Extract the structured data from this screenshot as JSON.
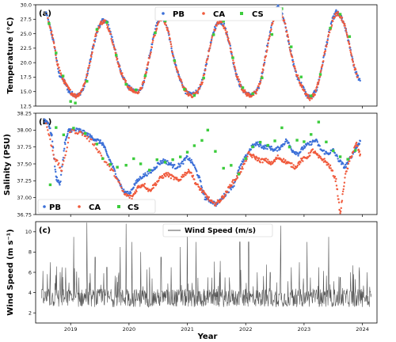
{
  "chart_data": [
    {
      "type": "scatter",
      "tag": "(a)",
      "ylabel": "Temperature (°C)",
      "ylim": [
        12.5,
        30.0
      ],
      "yticks": [
        12.5,
        15.0,
        17.5,
        20.0,
        22.5,
        25.0,
        27.5,
        30.0
      ],
      "ytick_labels": [
        "12.5",
        "15.0",
        "17.5",
        "20.0",
        "22.5",
        "25.0",
        "27.5",
        "30.0"
      ],
      "legend_position": "top-center",
      "series": [
        {
          "name": "PB",
          "color": "#3b6fd8",
          "values_x": [
            2018.58,
            2018.65,
            2018.72,
            2018.8,
            2018.88,
            2018.97,
            2019.05,
            2019.13,
            2019.22,
            2019.3,
            2019.38,
            2019.47,
            2019.55,
            2019.63,
            2019.72,
            2019.8,
            2019.88,
            2019.97,
            2020.05,
            2020.13,
            2020.22,
            2020.3,
            2020.38,
            2020.47,
            2020.55,
            2020.63,
            2020.72,
            2020.8,
            2020.88,
            2020.97,
            2021.05,
            2021.13,
            2021.22,
            2021.3,
            2021.38,
            2021.47,
            2021.55,
            2021.63,
            2021.72,
            2021.8,
            2021.88,
            2021.97,
            2022.05,
            2022.13,
            2022.22,
            2022.3,
            2022.38,
            2022.47,
            2022.55,
            2022.63,
            2022.72,
            2022.8,
            2022.88,
            2022.97,
            2023.05,
            2023.13,
            2023.22,
            2023.3,
            2023.38,
            2023.47,
            2023.55,
            2023.63,
            2023.72,
            2023.8,
            2023.88,
            2023.97
          ],
          "values_y": [
            28.6,
            26.0,
            23.0,
            18.0,
            17.0,
            15.0,
            14.5,
            14.3,
            15.5,
            18.5,
            22.5,
            26.0,
            27.3,
            27.0,
            24.0,
            20.5,
            18.0,
            16.0,
            15.3,
            15.0,
            15.5,
            18.5,
            22.5,
            26.5,
            28.0,
            27.0,
            23.0,
            19.5,
            17.0,
            15.0,
            14.5,
            14.8,
            15.5,
            18.5,
            22.5,
            26.0,
            27.2,
            26.5,
            23.5,
            19.5,
            16.5,
            15.0,
            14.5,
            14.5,
            15.5,
            19.0,
            23.5,
            27.5,
            29.7,
            28.5,
            24.5,
            20.5,
            17.5,
            16.0,
            14.2,
            14.0,
            15.5,
            19.0,
            23.0,
            27.0,
            28.8,
            28.0,
            25.5,
            22.0,
            18.5,
            16.5
          ]
        },
        {
          "name": "CA",
          "color": "#f05a3c",
          "values_x": [
            2018.61,
            2018.69,
            2018.77,
            2018.85,
            2018.93,
            2019.01,
            2019.09,
            2019.17,
            2019.26,
            2019.34,
            2019.42,
            2019.51,
            2019.59,
            2019.67,
            2019.76,
            2019.84,
            2019.93,
            2020.01,
            2020.09,
            2020.18,
            2020.26,
            2020.34,
            2020.43,
            2020.51,
            2020.59,
            2020.68,
            2020.76,
            2020.84,
            2020.93,
            2021.01,
            2021.09,
            2021.18,
            2021.26,
            2021.34,
            2021.43,
            2021.51,
            2021.59,
            2021.68,
            2021.76,
            2021.84,
            2021.93,
            2022.01,
            2022.09,
            2022.18,
            2022.26,
            2022.34,
            2022.43,
            2022.51,
            2022.59,
            2022.68,
            2022.76,
            2022.84,
            2022.93,
            2023.01,
            2023.09,
            2023.18,
            2023.26,
            2023.34,
            2023.43,
            2023.51,
            2023.59,
            2023.68,
            2023.76,
            2023.84,
            2023.93
          ],
          "values_y": [
            27.5,
            24.5,
            20.0,
            17.5,
            16.0,
            14.8,
            14.2,
            14.8,
            17.0,
            20.5,
            24.5,
            26.8,
            27.2,
            25.5,
            22.0,
            19.0,
            16.8,
            15.5,
            15.0,
            15.0,
            16.8,
            20.5,
            24.5,
            27.3,
            27.8,
            25.0,
            21.0,
            18.0,
            15.8,
            14.6,
            14.3,
            15.0,
            16.8,
            20.5,
            24.5,
            26.8,
            27.0,
            25.0,
            21.5,
            18.0,
            15.7,
            14.6,
            14.3,
            14.8,
            17.0,
            21.0,
            25.5,
            28.8,
            29.2,
            26.5,
            22.5,
            19.0,
            16.5,
            15.0,
            13.8,
            14.5,
            17.0,
            21.0,
            25.0,
            28.0,
            28.6,
            27.0,
            24.0,
            20.0,
            17.0
          ]
        },
        {
          "name": "CS",
          "color": "#3ccc3c",
          "values_x": [
            2018.63,
            2018.75,
            2018.87,
            2019.0,
            2019.08,
            2019.28,
            2019.45,
            2019.62,
            2019.78,
            2019.95,
            2020.12,
            2020.28,
            2020.45,
            2020.62,
            2020.78,
            2020.95,
            2021.12,
            2021.28,
            2021.45,
            2021.62,
            2021.78,
            2021.95,
            2022.12,
            2022.28,
            2022.45,
            2022.62,
            2022.78,
            2022.95,
            2023.12,
            2023.28,
            2023.45,
            2023.62,
            2023.78
          ],
          "values_y": [
            27.0,
            22.0,
            17.5,
            13.0,
            13.0,
            16.5,
            25.5,
            27.0,
            21.5,
            16.5,
            15.0,
            17.5,
            25.0,
            27.5,
            20.0,
            15.5,
            14.5,
            17.0,
            24.5,
            27.0,
            20.5,
            15.5,
            14.5,
            17.5,
            25.0,
            29.0,
            23.0,
            17.5,
            14.5,
            18.0,
            26.0,
            28.5,
            24.5
          ]
        }
      ]
    },
    {
      "type": "scatter",
      "tag": "(b)",
      "ylabel": "Salinity (PSU)",
      "ylim": [
        36.75,
        38.25
      ],
      "yticks": [
        36.75,
        37.0,
        37.25,
        37.5,
        37.75,
        38.0,
        38.25
      ],
      "ytick_labels": [
        "36.75",
        "37.00",
        "37.25",
        "37.50",
        "37.75",
        "38.00",
        "38.25"
      ],
      "legend_position": "bottom-left",
      "series": [
        {
          "name": "PB",
          "color": "#3b6fd8",
          "values_x": [
            2018.55,
            2018.62,
            2018.68,
            2018.75,
            2018.82,
            2018.9,
            2018.97,
            2019.05,
            2019.15,
            2019.25,
            2019.35,
            2019.45,
            2019.55,
            2019.62,
            2019.7,
            2019.8,
            2019.9,
            2020.0,
            2020.1,
            2020.2,
            2020.3,
            2020.4,
            2020.5,
            2020.6,
            2020.7,
            2020.8,
            2020.9,
            2021.0,
            2021.1,
            2021.2,
            2021.3,
            2021.4,
            2021.5,
            2021.6,
            2021.7,
            2021.8,
            2021.9,
            2022.0,
            2022.1,
            2022.2,
            2022.3,
            2022.4,
            2022.5,
            2022.6,
            2022.7,
            2022.8,
            2022.9,
            2023.0,
            2023.1,
            2023.2,
            2023.3,
            2023.4,
            2023.5,
            2023.6,
            2023.7,
            2023.8,
            2023.9,
            2023.97
          ],
          "values_y": [
            38.15,
            38.1,
            37.9,
            37.3,
            37.2,
            37.8,
            38.0,
            38.0,
            38.0,
            37.95,
            37.9,
            37.85,
            37.8,
            37.65,
            37.5,
            37.3,
            37.1,
            37.05,
            37.2,
            37.3,
            37.35,
            37.4,
            37.5,
            37.55,
            37.5,
            37.45,
            37.5,
            37.6,
            37.5,
            37.3,
            37.0,
            36.95,
            36.9,
            37.0,
            37.1,
            37.2,
            37.45,
            37.6,
            37.75,
            37.8,
            37.75,
            37.75,
            37.7,
            37.75,
            37.85,
            37.7,
            37.65,
            37.75,
            37.8,
            37.85,
            37.7,
            37.65,
            37.7,
            37.55,
            37.45,
            37.6,
            37.75,
            37.85
          ]
        },
        {
          "name": "CA",
          "color": "#f05a3c",
          "values_x": [
            2018.58,
            2018.72,
            2018.85,
            2019.0,
            2019.2,
            2019.4,
            2019.58,
            2019.75,
            2019.92,
            2020.05,
            2020.15,
            2020.25,
            2020.35,
            2020.45,
            2020.55,
            2020.65,
            2020.75,
            2020.85,
            2020.95,
            2021.05,
            2021.15,
            2021.25,
            2021.35,
            2021.45,
            2021.55,
            2021.65,
            2021.75,
            2021.85,
            2021.95,
            2022.05,
            2022.15,
            2022.25,
            2022.35,
            2022.45,
            2022.55,
            2022.65,
            2022.75,
            2022.85,
            2022.95,
            2023.05,
            2023.15,
            2023.25,
            2023.35,
            2023.45,
            2023.55,
            2023.62,
            2023.7,
            2023.8,
            2023.9,
            2023.97
          ],
          "values_y": [
            38.1,
            37.6,
            37.4,
            38.0,
            37.95,
            37.8,
            37.55,
            37.35,
            37.05,
            37.0,
            37.15,
            37.2,
            37.1,
            37.2,
            37.3,
            37.35,
            37.3,
            37.25,
            37.35,
            37.4,
            37.2,
            37.1,
            37.0,
            36.9,
            36.95,
            37.05,
            37.2,
            37.3,
            37.45,
            37.65,
            37.6,
            37.55,
            37.55,
            37.5,
            37.6,
            37.55,
            37.5,
            37.45,
            37.55,
            37.6,
            37.7,
            37.6,
            37.55,
            37.45,
            37.25,
            36.75,
            37.3,
            37.6,
            37.8,
            37.6
          ]
        },
        {
          "name": "CS",
          "color": "#3ccc3c",
          "values_x": [
            2018.65,
            2018.75,
            2018.88,
            2019.05,
            2019.25,
            2019.45,
            2019.55,
            2019.68,
            2019.8,
            2019.95,
            2020.08,
            2020.2,
            2020.35,
            2020.48,
            2020.62,
            2020.75,
            2020.88,
            2021.0,
            2021.12,
            2021.25,
            2021.35,
            2021.48,
            2021.62,
            2021.75,
            2021.88,
            2022.0,
            2022.12,
            2022.25,
            2022.38,
            2022.5,
            2022.62,
            2022.75,
            2022.88,
            2023.0,
            2023.12,
            2023.25,
            2023.38,
            2023.5,
            2023.62,
            2023.75,
            2023.88
          ],
          "values_y": [
            37.2,
            38.05,
            37.95,
            38.0,
            37.95,
            37.8,
            37.6,
            37.5,
            37.45,
            37.45,
            37.6,
            37.5,
            37.4,
            37.55,
            37.55,
            37.55,
            37.6,
            37.65,
            37.75,
            37.85,
            38.0,
            37.7,
            37.45,
            37.45,
            37.35,
            37.6,
            37.75,
            37.8,
            37.75,
            37.85,
            38.05,
            37.75,
            37.85,
            37.8,
            37.95,
            38.1,
            37.85,
            37.7,
            37.6,
            37.55,
            37.7
          ]
        }
      ]
    },
    {
      "type": "line",
      "tag": "(c)",
      "ylabel": "Wind Speed (m s⁻¹)",
      "xlabel": "Year",
      "ylim": [
        1.0,
        11.0
      ],
      "yticks": [
        2,
        4,
        6,
        8,
        10
      ],
      "ytick_labels": [
        "2",
        "4",
        "6",
        "8",
        "10"
      ],
      "xticks": [
        2019,
        2020,
        2021,
        2022,
        2023,
        2024
      ],
      "xtick_labels": [
        "2019",
        "2020",
        "2021",
        "2022",
        "2023",
        "2024"
      ],
      "legend_position": "top-center",
      "series": [
        {
          "name": "Wind Speed (m/s)",
          "color": "#555555",
          "x_start": 2018.5,
          "x_end": 2024.15,
          "spike_x": [
            2018.65,
            2018.85,
            2019.05,
            2019.28,
            2019.42,
            2019.62,
            2019.85,
            2019.95,
            2020.05,
            2020.2,
            2020.35,
            2020.55,
            2020.72,
            2020.88,
            2021.0,
            2021.15,
            2021.35,
            2021.55,
            2021.72,
            2021.9,
            2022.05,
            2022.2,
            2022.42,
            2022.6,
            2022.78,
            2022.92,
            2023.05,
            2023.25,
            2023.42,
            2023.62,
            2023.8,
            2023.95,
            2024.08
          ],
          "spike_y": [
            7.0,
            6.5,
            9.5,
            10.9,
            7.5,
            6.5,
            8.5,
            10.8,
            9.0,
            8.0,
            6.5,
            7.5,
            6.5,
            8.5,
            10.0,
            9.0,
            5.5,
            6.0,
            5.5,
            9.0,
            9.0,
            6.0,
            6.0,
            10.6,
            6.5,
            7.0,
            9.0,
            6.5,
            9.5,
            5.5,
            6.0,
            6.5,
            6.0
          ],
          "base_level": 3.2
        }
      ]
    }
  ]
}
